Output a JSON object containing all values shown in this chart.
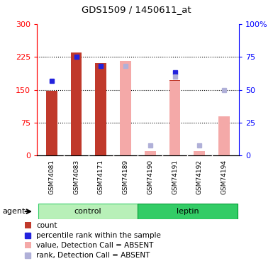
{
  "title": "GDS1509 / 1450611_at",
  "samples": [
    "GSM74081",
    "GSM74083",
    "GSM74171",
    "GSM74189",
    "GSM74190",
    "GSM74191",
    "GSM74192",
    "GSM74194"
  ],
  "count_values": [
    148,
    235,
    210,
    null,
    null,
    172,
    null,
    null
  ],
  "rank_values": [
    57,
    75,
    68,
    null,
    null,
    63,
    null,
    null
  ],
  "absent_value_bars": [
    null,
    null,
    null,
    215,
    10,
    170,
    10,
    90
  ],
  "absent_rank_squares": [
    null,
    null,
    null,
    68,
    8,
    60,
    8,
    50
  ],
  "ylim_left": [
    0,
    300
  ],
  "ylim_right": [
    0,
    100
  ],
  "yticks_left": [
    0,
    75,
    150,
    225,
    300
  ],
  "yticks_right": [
    0,
    25,
    50,
    75,
    100
  ],
  "ytick_labels_left": [
    "0",
    "75",
    "150",
    "225",
    "300"
  ],
  "ytick_labels_right": [
    "0",
    "25",
    "50",
    "75",
    "100%"
  ],
  "color_count": "#c0392b",
  "color_rank": "#2222dd",
  "color_absent_value": "#f4a9a8",
  "color_absent_rank": "#b0b0d8",
  "dotted_lines": [
    75,
    150,
    225
  ],
  "bar_width": 0.45,
  "control_color_light": "#b8f0b8",
  "control_color_dark": "#33cc66",
  "leptin_color": "#33cc66",
  "label_bg": "#cccccc"
}
